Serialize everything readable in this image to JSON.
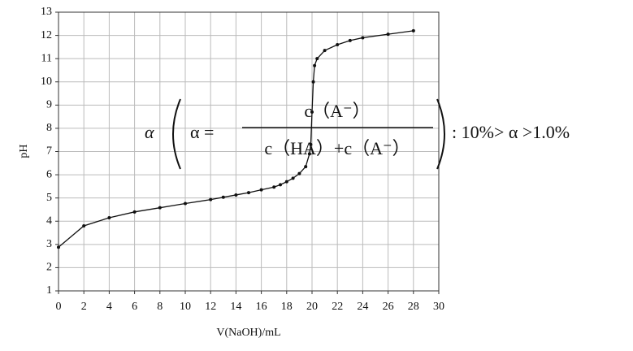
{
  "chart_data": {
    "type": "line",
    "x_label": "V(NaOH)/mL",
    "y_label": "pH",
    "x": [
      0,
      2,
      4,
      6,
      8,
      10,
      12,
      13,
      14,
      15,
      16,
      17,
      17.5,
      18,
      18.5,
      19,
      19.5,
      19.8,
      19.9,
      20,
      20.1,
      20.2,
      20.4,
      21,
      22,
      23,
      24,
      26,
      28
    ],
    "series": [
      {
        "name": "pH",
        "color": "#111111",
        "values": [
          2.88,
          3.8,
          4.15,
          4.4,
          4.58,
          4.76,
          4.93,
          5.03,
          5.13,
          5.23,
          5.35,
          5.47,
          5.57,
          5.7,
          5.85,
          6.05,
          6.35,
          6.9,
          7.3,
          8.7,
          10.0,
          10.7,
          11.0,
          11.35,
          11.6,
          11.78,
          11.9,
          12.05,
          12.2
        ]
      }
    ],
    "xlim": [
      0,
      30
    ],
    "xticks": [
      0,
      2,
      4,
      6,
      8,
      10,
      12,
      14,
      16,
      18,
      20,
      22,
      24,
      26,
      28,
      30
    ],
    "ylim": [
      1,
      13
    ],
    "yticks": [
      1,
      2,
      3,
      4,
      5,
      6,
      7,
      8,
      9,
      10,
      11,
      12,
      13
    ],
    "grid": true,
    "annotations": [
      "α",
      "α =",
      "c（A⁻）",
      "c（HA）+c（A⁻）",
      ":  10%> α >1.0%"
    ]
  }
}
